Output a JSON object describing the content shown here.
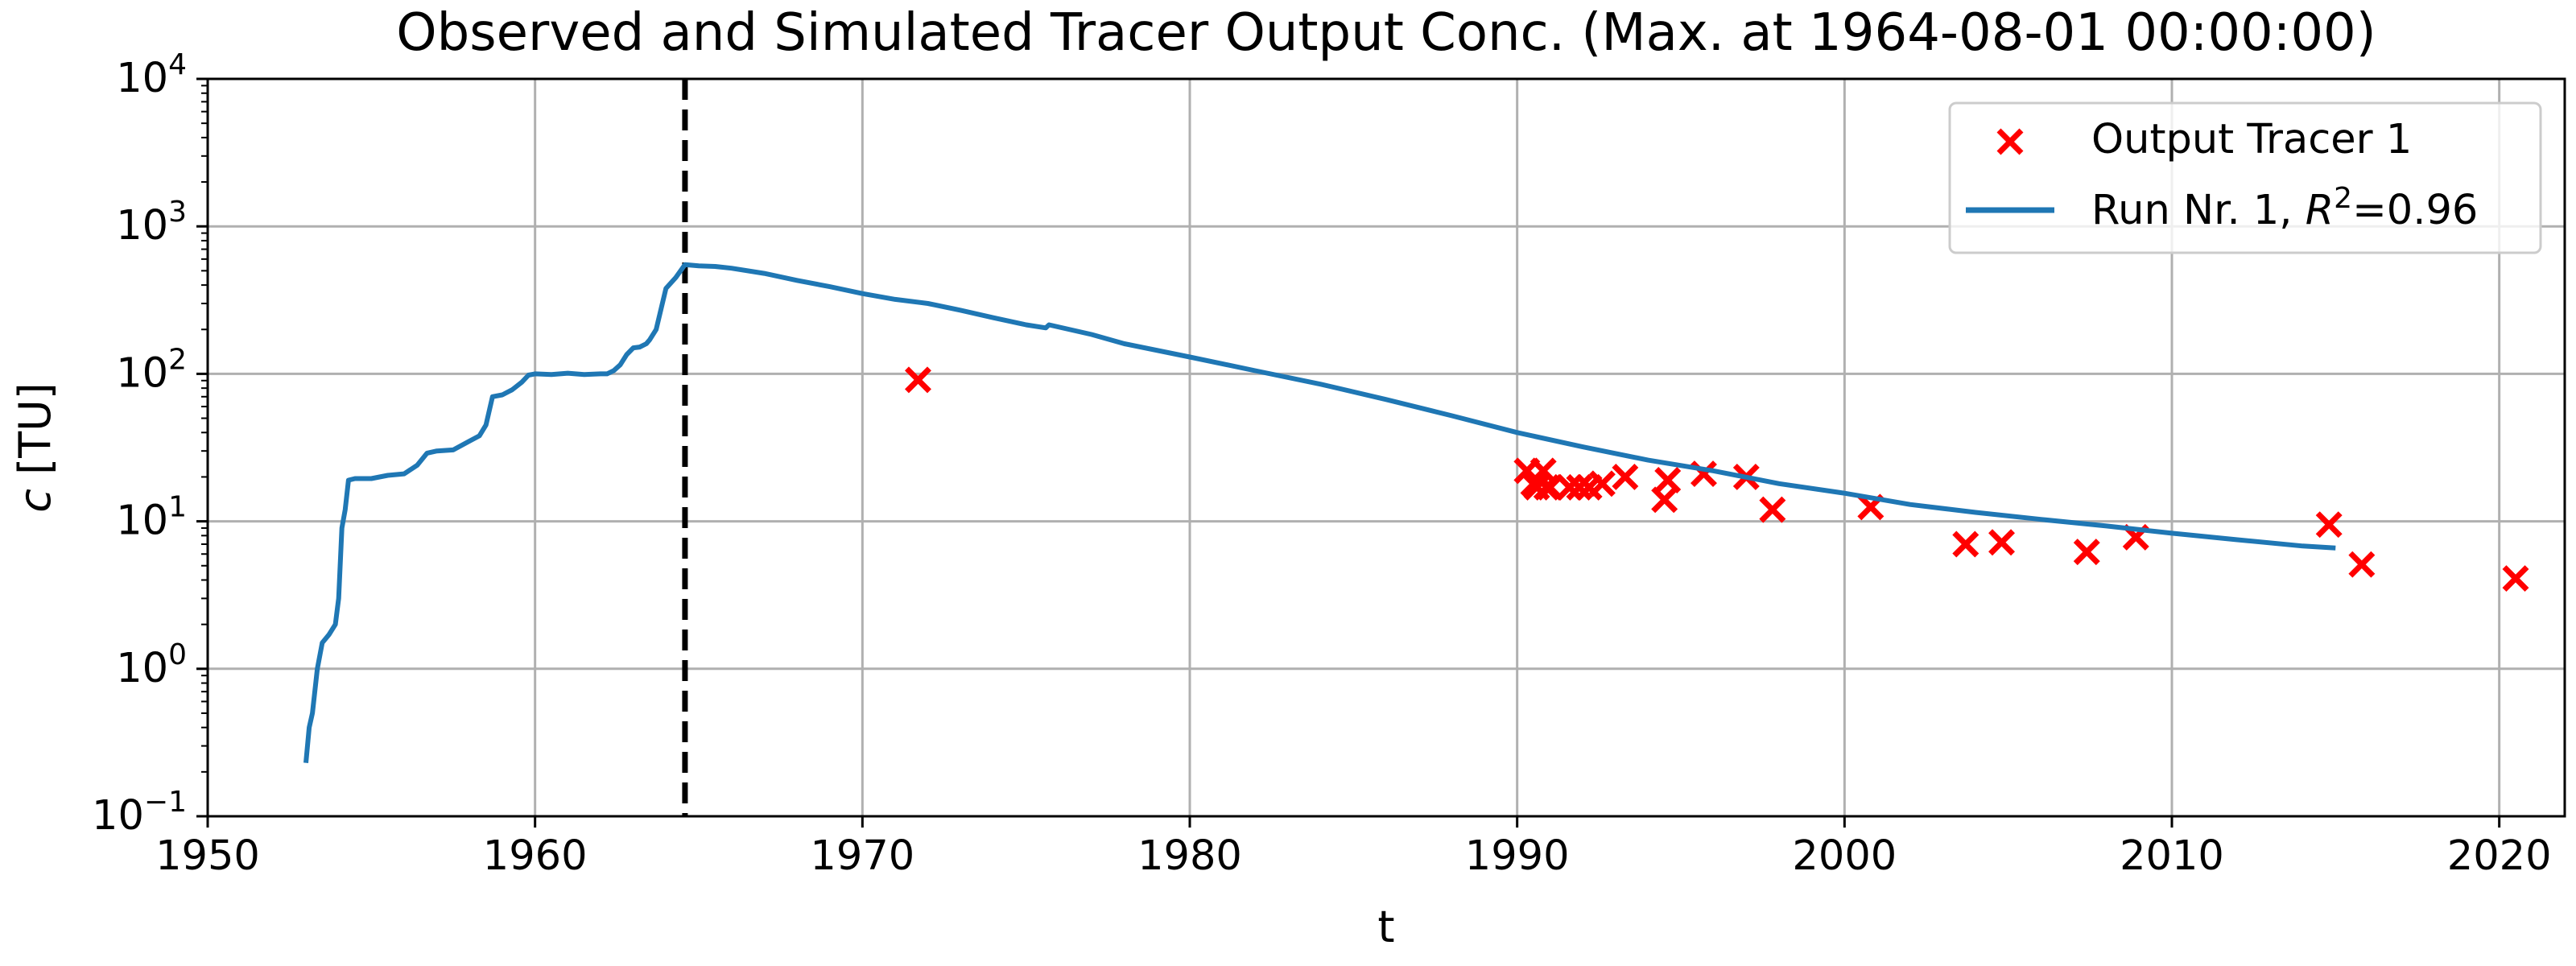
{
  "chart_data": {
    "type": "line",
    "title": "Observed and Simulated Tracer Output Conc. (Max. at 1964-08-01 00:00:00)",
    "xlabel": "t",
    "ylabel": "c [TU]",
    "xlim": [
      1950,
      2022
    ],
    "ylim": [
      0.1,
      10000
    ],
    "yscale": "log",
    "grid": true,
    "legend_position": "top-right",
    "xticks": [
      "1950",
      "1960",
      "1970",
      "1980",
      "1990",
      "2000",
      "2010",
      "2020"
    ],
    "xtick_values": [
      1950,
      1960,
      1970,
      1980,
      1990,
      2000,
      2010,
      2020
    ],
    "ytick_exponents": [
      "−1",
      "0",
      "1",
      "2",
      "3",
      "4"
    ],
    "ytick_values": [
      0.1,
      1,
      10,
      100,
      1000,
      10000
    ],
    "ytick_base": "10",
    "vline": {
      "x": 1964.58,
      "color": "#000000",
      "style": "dashed"
    },
    "series": [
      {
        "name": "Output Tracer 1",
        "kind": "scatter",
        "marker": "x",
        "color": "#ff0000",
        "x": [
          1971.7,
          1990.3,
          1990.5,
          1990.6,
          1990.8,
          1990.9,
          1991.0,
          1991.6,
          1991.9,
          1992.2,
          1992.6,
          1993.3,
          1994.5,
          1994.6,
          1995.7,
          1997.0,
          1997.8,
          2000.8,
          2003.7,
          2004.8,
          2007.4,
          2008.9,
          2014.8,
          2015.8,
          2020.5
        ],
        "y": [
          91,
          22,
          18,
          17,
          22,
          17,
          17,
          17,
          17,
          17,
          18,
          20,
          14,
          19,
          21,
          20,
          12,
          12.5,
          7,
          7.2,
          6.2,
          7.8,
          9.5,
          5.1,
          4.1
        ]
      },
      {
        "name": "Run Nr. 1, ",
        "name_math": "R",
        "name_sup": "2",
        "name_suffix": "=0.96",
        "kind": "line",
        "color": "#1f77b4",
        "x": [
          1953.0,
          1953.1,
          1953.2,
          1953.35,
          1953.5,
          1953.7,
          1953.9,
          1954.0,
          1954.1,
          1954.2,
          1954.3,
          1954.5,
          1955.0,
          1955.5,
          1956.0,
          1956.4,
          1956.7,
          1957.0,
          1957.5,
          1958.0,
          1958.3,
          1958.5,
          1958.7,
          1959.0,
          1959.3,
          1959.6,
          1959.8,
          1960.0,
          1960.5,
          1961.0,
          1961.5,
          1962.0,
          1962.2,
          1962.4,
          1962.6,
          1962.8,
          1963.0,
          1963.2,
          1963.4,
          1963.5,
          1963.7,
          1964.0,
          1964.3,
          1964.58,
          1965.0,
          1965.5,
          1966.0,
          1967.0,
          1968.0,
          1969.0,
          1970.0,
          1971.0,
          1972.0,
          1973.0,
          1974.0,
          1975.0,
          1975.6,
          1975.7,
          1977.0,
          1978.0,
          1980.0,
          1982.0,
          1984.0,
          1986.0,
          1988.0,
          1990.0,
          1992.0,
          1994.0,
          1996.0,
          1998.0,
          2000.0,
          2002.0,
          2004.0,
          2006.0,
          2008.0,
          2010.0,
          2012.0,
          2014.0,
          2015.0
        ],
        "y": [
          0.23,
          0.4,
          0.5,
          1.0,
          1.5,
          1.7,
          2.0,
          3.0,
          9.0,
          12.0,
          19.0,
          19.5,
          19.5,
          20.5,
          21.0,
          24.0,
          29.0,
          30.0,
          30.5,
          35.0,
          38.0,
          45.0,
          70.0,
          72.0,
          78.0,
          88.0,
          98.0,
          100.0,
          99.0,
          101.0,
          99.0,
          100.0,
          100.0,
          105.0,
          115.0,
          135.0,
          150.0,
          152.0,
          160.0,
          170.0,
          200.0,
          380.0,
          450.0,
          550.0,
          540.0,
          535.0,
          520.0,
          480.0,
          430.0,
          390.0,
          350.0,
          320.0,
          300.0,
          270.0,
          240.0,
          215.0,
          205.0,
          215.0,
          185.0,
          160.0,
          130.0,
          105.0,
          85.0,
          67.0,
          52.0,
          40.0,
          32.0,
          26.0,
          22.0,
          18.0,
          15.5,
          13.0,
          11.5,
          10.3,
          9.3,
          8.3,
          7.5,
          6.8,
          6.6
        ]
      }
    ]
  }
}
